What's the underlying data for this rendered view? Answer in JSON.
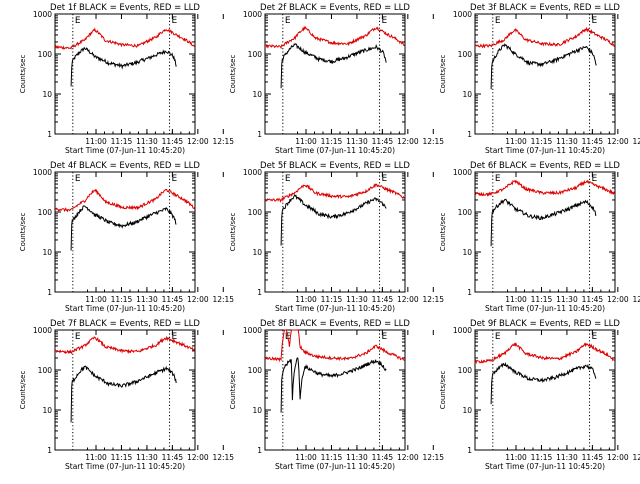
{
  "colors": {
    "events": "#000000",
    "lld": "#dd0000",
    "axis": "#000000",
    "background": "#ffffff"
  },
  "chart_data": [
    {
      "type": "line",
      "title": "Det 1f BLACK = Events, RED = LLD",
      "xlabel": "Start Time (07-Jun-11 10:45:20)",
      "ylabel": "Counts/sec",
      "yscale": "log",
      "ylim": [
        1,
        1000
      ],
      "xlim_minutes": [
        -9.5,
        73
      ],
      "y_ticks": [
        "1",
        "10",
        "100",
        "1000"
      ],
      "x_ticks": [
        "11:00",
        "11:15",
        "11:30",
        "11:45",
        "12:00",
        "12:15"
      ],
      "markers": [
        "E",
        "E"
      ],
      "marker_lines_minutes": [
        1,
        58
      ],
      "series": [
        {
          "name": "Events",
          "x_minutes": [
            0,
            0.5,
            2,
            8,
            14,
            22,
            30,
            38,
            46,
            54,
            56,
            60,
            62
          ],
          "values": [
            15,
            60,
            80,
            140,
            85,
            60,
            50,
            60,
            80,
            110,
            120,
            90,
            50
          ]
        },
        {
          "name": "LLD",
          "x_minutes": [
            -9.5,
            0,
            8,
            14,
            20,
            30,
            40,
            50,
            56,
            62,
            73
          ],
          "values": [
            150,
            140,
            220,
            400,
            220,
            170,
            160,
            260,
            420,
            300,
            150
          ]
        }
      ]
    },
    {
      "type": "line",
      "title": "Det 2f BLACK = Events, RED = LLD",
      "xlabel": "Start Time (07-Jun-11 10:45:20)",
      "ylabel": "Counts/sec",
      "yscale": "log",
      "ylim": [
        1,
        1000
      ],
      "xlim_minutes": [
        -9.5,
        73
      ],
      "y_ticks": [
        "1",
        "10",
        "100",
        "1000"
      ],
      "x_ticks": [
        "11:00",
        "11:15",
        "11:30",
        "11:45",
        "12:00",
        "12:15"
      ],
      "markers": [
        "E",
        "E"
      ],
      "marker_lines_minutes": [
        1,
        58
      ],
      "series": [
        {
          "name": "Events",
          "x_minutes": [
            0,
            0.5,
            2,
            8,
            14,
            22,
            30,
            38,
            46,
            54,
            56,
            60,
            62
          ],
          "values": [
            14,
            70,
            90,
            170,
            110,
            75,
            65,
            80,
            110,
            140,
            150,
            110,
            60
          ]
        },
        {
          "name": "LLD",
          "x_minutes": [
            -9.5,
            0,
            8,
            14,
            20,
            30,
            40,
            50,
            56,
            62,
            73
          ],
          "values": [
            160,
            150,
            250,
            450,
            250,
            190,
            180,
            290,
            460,
            320,
            160
          ]
        }
      ]
    },
    {
      "type": "line",
      "title": "Det 3f BLACK = Events, RED = LLD",
      "xlabel": "Start Time (07-Jun-11 10:45:20)",
      "ylabel": "Counts/sec",
      "yscale": "log",
      "ylim": [
        1,
        1000
      ],
      "xlim_minutes": [
        -9.5,
        73
      ],
      "y_ticks": [
        "1",
        "10",
        "100",
        "1000"
      ],
      "x_ticks": [
        "11:00",
        "11:15",
        "11:30",
        "11:45",
        "12:00",
        "12:15"
      ],
      "markers": [
        "E",
        "E"
      ],
      "marker_lines_minutes": [
        1,
        58
      ],
      "series": [
        {
          "name": "Events",
          "x_minutes": [
            0,
            0.5,
            2,
            8,
            14,
            22,
            30,
            38,
            46,
            54,
            56,
            60,
            62
          ],
          "values": [
            14,
            60,
            80,
            170,
            100,
            60,
            55,
            70,
            100,
            140,
            150,
            100,
            50
          ]
        },
        {
          "name": "LLD",
          "x_minutes": [
            -9.5,
            0,
            8,
            14,
            20,
            30,
            40,
            50,
            56,
            62,
            73
          ],
          "values": [
            160,
            160,
            230,
            400,
            230,
            180,
            170,
            270,
            420,
            300,
            160
          ]
        }
      ]
    },
    {
      "type": "line",
      "title": "Det 4f BLACK = Events, RED = LLD",
      "xlabel": "Start Time (07-Jun-11 10:45:20)",
      "ylabel": "Counts/sec",
      "yscale": "log",
      "ylim": [
        1,
        1000
      ],
      "xlim_minutes": [
        -9.5,
        73
      ],
      "y_ticks": [
        "1",
        "10",
        "100",
        "1000"
      ],
      "x_ticks": [
        "11:00",
        "11:15",
        "11:30",
        "11:45",
        "12:00",
        "12:15"
      ],
      "markers": [
        "E",
        "E"
      ],
      "marker_lines_minutes": [
        1,
        58
      ],
      "series": [
        {
          "name": "Events",
          "x_minutes": [
            0,
            0.5,
            2,
            8,
            14,
            22,
            30,
            38,
            46,
            54,
            56,
            60,
            62
          ],
          "values": [
            12,
            60,
            70,
            140,
            85,
            55,
            45,
            55,
            80,
            110,
            120,
            80,
            50
          ]
        },
        {
          "name": "LLD",
          "x_minutes": [
            -9.5,
            0,
            8,
            14,
            20,
            30,
            40,
            50,
            56,
            62,
            73
          ],
          "values": [
            120,
            110,
            190,
            350,
            180,
            130,
            130,
            210,
            360,
            260,
            120
          ]
        }
      ]
    },
    {
      "type": "line",
      "title": "Det 5f BLACK = Events, RED = LLD",
      "xlabel": "Start Time (07-Jun-11 10:45:20)",
      "ylabel": "Counts/sec",
      "yscale": "log",
      "ylim": [
        1,
        1000
      ],
      "xlim_minutes": [
        -9.5,
        73
      ],
      "y_ticks": [
        "1",
        "10",
        "100",
        "1000"
      ],
      "x_ticks": [
        "11:00",
        "11:15",
        "11:30",
        "11:45",
        "12:00",
        "12:15"
      ],
      "markers": [
        "E",
        "E"
      ],
      "marker_lines_minutes": [
        1,
        58
      ],
      "series": [
        {
          "name": "Events",
          "x_minutes": [
            0,
            0.5,
            2,
            8,
            14,
            22,
            30,
            38,
            46,
            54,
            56,
            60,
            62
          ],
          "values": [
            15,
            110,
            130,
            250,
            150,
            90,
            75,
            90,
            130,
            200,
            210,
            160,
            120
          ]
        },
        {
          "name": "LLD",
          "x_minutes": [
            -9.5,
            0,
            8,
            14,
            20,
            30,
            40,
            50,
            56,
            62,
            73
          ],
          "values": [
            200,
            200,
            300,
            480,
            300,
            250,
            240,
            330,
            480,
            370,
            220
          ]
        }
      ]
    },
    {
      "type": "line",
      "title": "Det 6f BLACK = Events, RED = LLD",
      "xlabel": "Start Time (07-Jun-11 10:45:20)",
      "ylabel": "Counts/sec",
      "yscale": "log",
      "ylim": [
        1,
        1000
      ],
      "xlim_minutes": [
        -9.5,
        73
      ],
      "y_ticks": [
        "1",
        "10",
        "100",
        "1000"
      ],
      "x_ticks": [
        "11:00",
        "11:15",
        "11:30",
        "11:45",
        "12:00",
        "12:15"
      ],
      "markers": [
        "E",
        "E"
      ],
      "marker_lines_minutes": [
        1,
        58
      ],
      "series": [
        {
          "name": "Events",
          "x_minutes": [
            0,
            0.5,
            2,
            8,
            14,
            22,
            30,
            38,
            46,
            54,
            56,
            60,
            62
          ],
          "values": [
            15,
            100,
            120,
            200,
            120,
            80,
            70,
            90,
            120,
            170,
            180,
            130,
            80
          ]
        },
        {
          "name": "LLD",
          "x_minutes": [
            -9.5,
            0,
            8,
            14,
            20,
            30,
            40,
            50,
            56,
            62,
            73
          ],
          "values": [
            280,
            280,
            380,
            600,
            380,
            300,
            300,
            400,
            580,
            450,
            280
          ]
        }
      ]
    },
    {
      "type": "line",
      "title": "Det 7f BLACK = Events, RED = LLD",
      "xlabel": "Start Time (07-Jun-11 10:45:20)",
      "ylabel": "Counts/sec",
      "yscale": "log",
      "ylim": [
        1,
        1000
      ],
      "xlim_minutes": [
        -9.5,
        73
      ],
      "y_ticks": [
        "1",
        "10",
        "100",
        "1000"
      ],
      "x_ticks": [
        "11:00",
        "11:15",
        "11:30",
        "11:45",
        "12:00",
        "12:15"
      ],
      "markers": [
        "E",
        "E"
      ],
      "marker_lines_minutes": [
        1,
        58
      ],
      "series": [
        {
          "name": "Events",
          "x_minutes": [
            0,
            0.5,
            2,
            8,
            14,
            22,
            30,
            38,
            46,
            54,
            56,
            60,
            62
          ],
          "values": [
            5,
            50,
            60,
            120,
            70,
            45,
            40,
            50,
            70,
            100,
            110,
            80,
            50
          ]
        },
        {
          "name": "LLD",
          "x_minutes": [
            -9.5,
            0,
            8,
            14,
            20,
            30,
            40,
            50,
            56,
            62,
            73
          ],
          "values": [
            300,
            280,
            400,
            650,
            380,
            300,
            290,
            420,
            640,
            500,
            300
          ]
        }
      ]
    },
    {
      "type": "line",
      "title": "Det 8f BLACK = Events, RED = LLD",
      "xlabel": "Start Time (07-Jun-11 10:45:20)",
      "ylabel": "Counts/sec",
      "yscale": "log",
      "ylim": [
        1,
        1000
      ],
      "xlim_minutes": [
        -9.5,
        73
      ],
      "y_ticks": [
        "1",
        "10",
        "100",
        "1000"
      ],
      "x_ticks": [
        "11:00",
        "11:15",
        "11:30",
        "11:45",
        "12:00",
        "12:15"
      ],
      "markers": [
        "E",
        "E"
      ],
      "marker_lines_minutes": [
        1,
        58
      ],
      "series": [
        {
          "name": "Events",
          "x_minutes": [
            0,
            0.5,
            2,
            4,
            6,
            6.5,
            8,
            9,
            10,
            11,
            14,
            22,
            30,
            38,
            46,
            54,
            56,
            60,
            62
          ],
          "values": [
            8,
            70,
            120,
            150,
            180,
            8,
            100,
            180,
            200,
            10,
            120,
            80,
            70,
            85,
            110,
            160,
            170,
            130,
            90
          ]
        },
        {
          "name": "LLD",
          "x_minutes": [
            -9.5,
            0,
            2,
            3,
            5,
            6,
            7,
            10,
            11,
            13,
            14,
            20,
            30,
            40,
            50,
            56,
            62,
            73
          ],
          "values": [
            200,
            180,
            1000,
            1000,
            320,
            1000,
            1000,
            1000,
            400,
            300,
            280,
            220,
            200,
            190,
            260,
            400,
            280,
            170
          ]
        }
      ]
    },
    {
      "type": "line",
      "title": "Det 9f BLACK = Events, RED = LLD",
      "xlabel": "Start Time (07-Jun-11 10:45:20)",
      "ylabel": "Counts/sec",
      "yscale": "log",
      "ylim": [
        1,
        1000
      ],
      "xlim_minutes": [
        -9.5,
        73
      ],
      "y_ticks": [
        "1",
        "10",
        "100",
        "1000"
      ],
      "x_ticks": [
        "11:00",
        "11:15",
        "11:30",
        "11:45",
        "12:00",
        "12:15"
      ],
      "markers": [
        "E",
        "E"
      ],
      "marker_lines_minutes": [
        1,
        58
      ],
      "series": [
        {
          "name": "Events",
          "x_minutes": [
            0,
            0.5,
            2,
            8,
            14,
            22,
            30,
            38,
            46,
            54,
            56,
            60,
            62
          ],
          "values": [
            15,
            70,
            90,
            140,
            90,
            60,
            55,
            65,
            90,
            120,
            130,
            100,
            60
          ]
        },
        {
          "name": "LLD",
          "x_minutes": [
            -9.5,
            0,
            8,
            14,
            20,
            30,
            40,
            50,
            56,
            62,
            73
          ],
          "values": [
            160,
            170,
            260,
            450,
            260,
            200,
            190,
            280,
            450,
            330,
            170
          ]
        }
      ]
    }
  ]
}
